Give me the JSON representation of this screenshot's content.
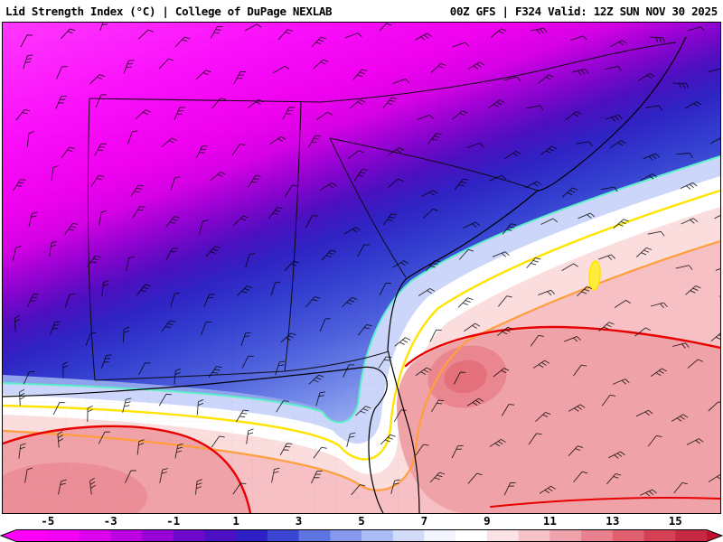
{
  "header": {
    "left": "Lid Strength Index (°C) | College of DuPage NEXLAB",
    "right": "00Z GFS | F324 Valid: 12Z SUN NOV 30 2025"
  },
  "map": {
    "field": "Lid Strength Index (C)",
    "region": "Southeastern United States",
    "type": "filled contour analysis with wind barbs",
    "contour_lines": [
      {
        "name": "cyan",
        "color": "#5cf0c8"
      },
      {
        "name": "yellow",
        "color": "#ffe400"
      },
      {
        "name": "orange",
        "color": "#ff9e3c"
      },
      {
        "name": "red",
        "color": "#e80000"
      }
    ]
  },
  "colorbar": {
    "labels": [
      "-5",
      "-3",
      "-1",
      "1",
      "3",
      "5",
      "7",
      "9",
      "11",
      "13",
      "15"
    ],
    "value_min": -6,
    "value_max": 16,
    "segment_colors": [
      "#ff00ff",
      "#f202f8",
      "#dc02ee",
      "#bc02e2",
      "#9603d6",
      "#6e08ca",
      "#4a10c2",
      "#2f1fc6",
      "#3a46d2",
      "#5e74e0",
      "#8498ec",
      "#aabcf4",
      "#d2dcfa",
      "#f2f4fe",
      "#ffffff",
      "#fbe2e4",
      "#f5c2c8",
      "#efa2ac",
      "#e8808e",
      "#e06070",
      "#d44054",
      "#c62a42"
    ],
    "left_arrow_color": "#ff00ff",
    "right_arrow_color": "#c01030"
  }
}
